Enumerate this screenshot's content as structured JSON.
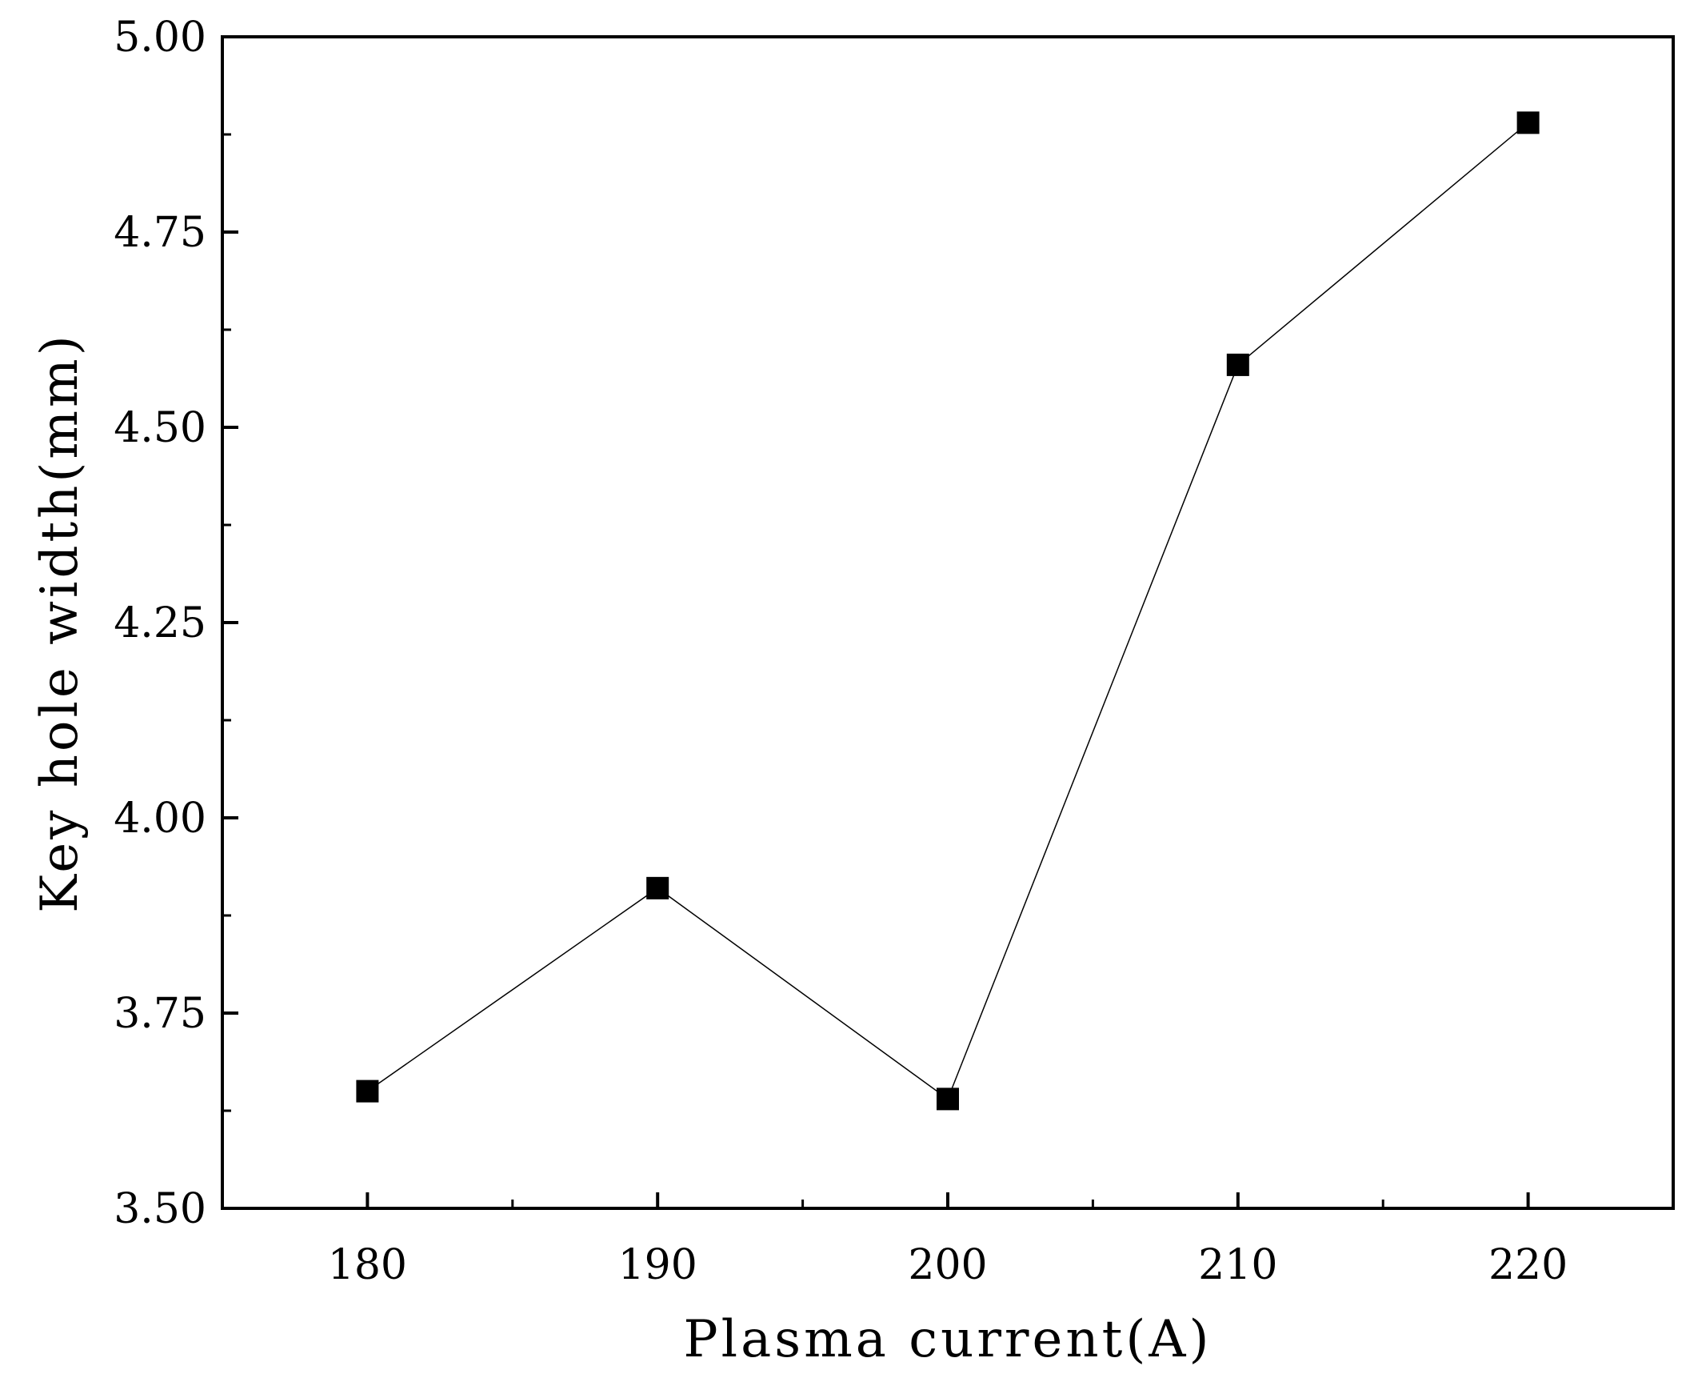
{
  "chart_data": {
    "type": "line",
    "title": "",
    "xlabel": "Plasma current(A)",
    "ylabel": "Key hole width(mm)",
    "xlim": [
      175,
      225
    ],
    "ylim": [
      3.5,
      5.0
    ],
    "x_ticks": [
      {
        "value": 180,
        "label": "180"
      },
      {
        "value": 190,
        "label": "190"
      },
      {
        "value": 200,
        "label": "200"
      },
      {
        "value": 210,
        "label": "210"
      },
      {
        "value": 220,
        "label": "220"
      }
    ],
    "x_minor_ticks": [
      185,
      195,
      205,
      215
    ],
    "y_ticks": [
      {
        "value": 3.5,
        "label": "3.50"
      },
      {
        "value": 3.75,
        "label": "3.75"
      },
      {
        "value": 4.0,
        "label": "4.00"
      },
      {
        "value": 4.25,
        "label": "4.25"
      },
      {
        "value": 4.5,
        "label": "4.50"
      },
      {
        "value": 4.75,
        "label": "4.75"
      },
      {
        "value": 5.0,
        "label": "5.00"
      }
    ],
    "y_minor_ticks": [
      3.625,
      3.875,
      4.125,
      4.375,
      4.625,
      4.875
    ],
    "grid": false,
    "legend": "none",
    "series": [
      {
        "marker": "square",
        "color": "#000000",
        "x": [
          180,
          190,
          200,
          210,
          220
        ],
        "y": [
          3.65,
          3.91,
          3.64,
          4.58,
          4.89
        ]
      }
    ]
  }
}
